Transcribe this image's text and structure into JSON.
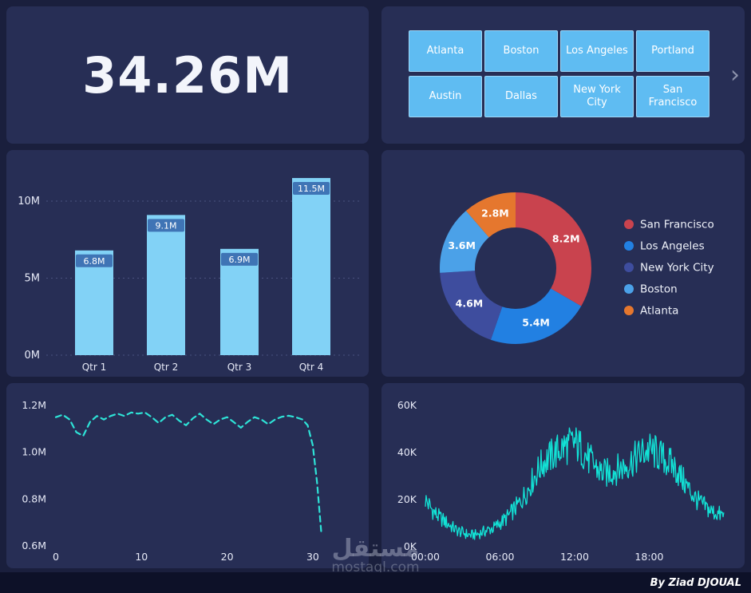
{
  "kpi": {
    "value": "34.26M"
  },
  "slicer": {
    "buttons": [
      "Atlanta",
      "Boston",
      "Los Angeles",
      "Portland",
      "Austin",
      "Dallas",
      "New York City",
      "San Francisco"
    ],
    "chevron": "›"
  },
  "watermark": {
    "arabic": "مستقل",
    "domain": "mostaql.com"
  },
  "footer": {
    "credit": "By Ziad DJOUAL"
  },
  "colors": {
    "background": "#1a1f3d",
    "card": "#272e55",
    "accent_cyan": "#2ee3d7",
    "button_blue": "#5fbcf2"
  },
  "chart_data": [
    {
      "id": "quarterly-bars",
      "type": "bar",
      "categories": [
        "Qtr 1",
        "Qtr 2",
        "Qtr 3",
        "Qtr 4"
      ],
      "values": [
        6.8,
        9.1,
        6.9,
        11.5
      ],
      "labels": [
        "6.8M",
        "9.1M",
        "6.9M",
        "11.5M"
      ],
      "ylim": [
        0,
        12
      ],
      "yticks": [
        0,
        5,
        10
      ],
      "ytick_labels": [
        "0M",
        "5M",
        "10M"
      ],
      "grid": "dotted-horizontal",
      "bar_color": "#82d2f6",
      "label_chip_color": "#3f74b5"
    },
    {
      "id": "city-donut",
      "type": "pie",
      "donut": true,
      "legend_position": "right",
      "slices": [
        {
          "label": "San Francisco",
          "value": 8.2,
          "display": "8.2M",
          "color": "#c9434e"
        },
        {
          "label": "Los Angeles",
          "value": 5.4,
          "display": "5.4M",
          "color": "#2280e2"
        },
        {
          "label": "New York City",
          "value": 4.6,
          "display": "4.6M",
          "color": "#3e4d9e"
        },
        {
          "label": "Boston",
          "value": 3.6,
          "display": "3.6M",
          "color": "#4ba1e8"
        },
        {
          "label": "Atlanta",
          "value": 2.8,
          "display": "2.8M",
          "color": "#e5772e"
        }
      ]
    },
    {
      "id": "trend-line",
      "type": "line",
      "style": "dashed",
      "color": "#2ee3d7",
      "xlim": [
        0,
        31.5
      ],
      "ylim": [
        0.6,
        1.22
      ],
      "xticks": [
        0,
        10,
        20,
        30
      ],
      "yticks": [
        1.2,
        1.0,
        0.8,
        0.6
      ],
      "ytick_labels": [
        "1.2M",
        "1.0M",
        "0.8M",
        "0.6M"
      ],
      "x": [
        0,
        0.8,
        1.6,
        2.4,
        3.2,
        4,
        4.8,
        5.6,
        6.4,
        7.2,
        8,
        8.8,
        9.6,
        10.4,
        11.2,
        12,
        12.8,
        13.6,
        14.4,
        15.2,
        16,
        16.8,
        17.6,
        18.4,
        19.2,
        20,
        20.8,
        21.6,
        22.4,
        23.2,
        24,
        24.8,
        25.6,
        26.4,
        27.2,
        28,
        28.8,
        29.4,
        30,
        30.5,
        31
      ],
      "y": [
        1.15,
        1.16,
        1.14,
        1.085,
        1.07,
        1.13,
        1.155,
        1.14,
        1.155,
        1.165,
        1.155,
        1.17,
        1.165,
        1.17,
        1.15,
        1.125,
        1.15,
        1.16,
        1.135,
        1.115,
        1.145,
        1.165,
        1.14,
        1.12,
        1.14,
        1.15,
        1.128,
        1.105,
        1.13,
        1.15,
        1.14,
        1.12,
        1.14,
        1.152,
        1.156,
        1.15,
        1.14,
        1.115,
        1.03,
        0.87,
        0.655
      ]
    },
    {
      "id": "intraday-series",
      "type": "line",
      "color": "#12e3d6",
      "xlim": [
        0,
        24
      ],
      "ylim": [
        0,
        60
      ],
      "xticks": [
        0,
        6,
        12,
        18
      ],
      "xtick_labels": [
        "00:00",
        "06:00",
        "12:00",
        "18:00"
      ],
      "yticks": [
        0,
        20,
        40,
        60
      ],
      "ytick_labels": [
        "0K",
        "20K",
        "40K",
        "60K"
      ],
      "x_hours": [
        0,
        0.5,
        1,
        1.5,
        2,
        2.5,
        3,
        3.5,
        4,
        4.5,
        5,
        5.5,
        6,
        6.5,
        7,
        7.5,
        8,
        8.5,
        9,
        9.5,
        10,
        10.5,
        11,
        11.5,
        12,
        12.5,
        13,
        13.5,
        14,
        14.5,
        15,
        15.5,
        16,
        16.5,
        17,
        17.5,
        18,
        18.5,
        19,
        19.5,
        20,
        20.5,
        21,
        21.5,
        22,
        22.5,
        23,
        23.5,
        24
      ],
      "values_k": [
        20,
        16,
        13,
        11,
        9,
        7,
        6,
        5,
        5,
        6,
        7,
        8,
        10,
        12,
        15,
        18,
        22,
        27,
        32,
        36,
        38,
        40,
        42,
        43,
        44,
        42,
        38,
        35,
        32,
        31,
        32,
        33,
        34,
        36,
        38,
        40,
        41,
        40,
        38,
        36,
        34,
        30,
        26,
        22,
        19,
        17,
        15,
        14,
        13
      ],
      "noise": {
        "base": 1.5,
        "factor": 0.16
      }
    }
  ]
}
